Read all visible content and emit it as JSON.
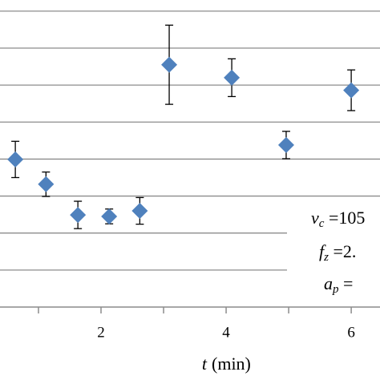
{
  "chart_data": {
    "type": "scatter",
    "x_label_var": "t",
    "x_label_unit": "(min)",
    "x": [
      0.63,
      1.12,
      1.63,
      2.13,
      2.62,
      3.09,
      4.09,
      4.96,
      6.0
    ],
    "series": [
      {
        "color": "#4f81bd",
        "values": [
          3.99,
          3.32,
          2.49,
          2.45,
          2.6,
          6.55,
          6.2,
          4.38,
          5.86
        ],
        "errors": [
          0.49,
          0.33,
          0.37,
          0.2,
          0.36,
          1.07,
          0.51,
          0.37,
          0.55
        ]
      }
    ],
    "xlim": [
      0.385,
      6.46
    ],
    "xticks": [
      2,
      4,
      6
    ],
    "xminorticks": [
      1,
      3,
      5
    ],
    "ylim": [
      0,
      8.3
    ],
    "yticks": [
      1,
      2,
      3,
      4,
      5,
      6,
      7,
      8
    ],
    "grid": true,
    "annotations": [
      {
        "var": "v",
        "sub": "c",
        "rest": " =105"
      },
      {
        "var": "f",
        "sub": "z",
        "rest": " =2."
      },
      {
        "var": "a",
        "sub": "p",
        "rest": " ="
      }
    ]
  }
}
